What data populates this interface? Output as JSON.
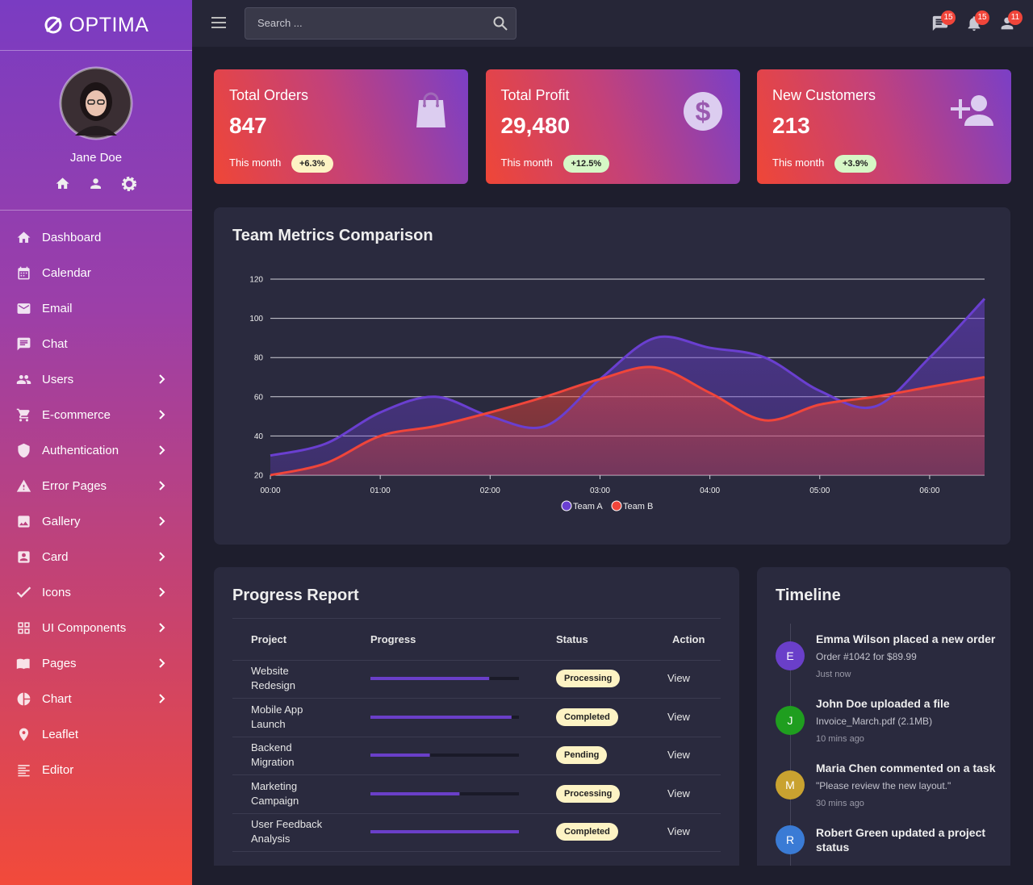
{
  "sidebar": {
    "brand": "OPTIMA",
    "user": {
      "name": "Jane Doe"
    },
    "menu": [
      {
        "label": "Dashboard"
      },
      {
        "label": "Calendar"
      },
      {
        "label": "Email"
      },
      {
        "label": "Chat"
      },
      {
        "label": "Users",
        "submenu": true
      },
      {
        "label": "E-commerce",
        "submenu": true
      },
      {
        "label": "Authentication",
        "submenu": true
      },
      {
        "label": "Error Pages",
        "submenu": true
      },
      {
        "label": "Gallery",
        "submenu": true
      },
      {
        "label": "Card",
        "submenu": true
      },
      {
        "label": "Icons",
        "submenu": true
      },
      {
        "label": "UI Components",
        "submenu": true
      },
      {
        "label": "Pages",
        "submenu": true
      },
      {
        "label": "Chart",
        "submenu": true
      },
      {
        "label": "Leaflet"
      },
      {
        "label": "Editor"
      }
    ]
  },
  "topbar": {
    "search_placeholder": "Search ...",
    "badges": {
      "messages": 15,
      "notifications": 15,
      "users": 11
    }
  },
  "stats": [
    {
      "title": "Total Orders",
      "value": "847",
      "period": "This month",
      "change": "+6.3%",
      "change_color": "#fdf3c4"
    },
    {
      "title": "Total Profit",
      "value": "29,480",
      "period": "This month",
      "change": "+12.5%",
      "change_color": "#d6f7c6"
    },
    {
      "title": "New Customers",
      "value": "213",
      "period": "This month",
      "change": "+3.9%",
      "change_color": "#d6f7c6"
    }
  ],
  "chart_data": {
    "type": "area",
    "title": "Team Metrics Comparison",
    "categories": [
      "00:00",
      null,
      "01:00",
      null,
      "02:00",
      null,
      "03:00",
      null,
      "04:00",
      null,
      "05:00",
      null,
      "06:00",
      null
    ],
    "series": [
      {
        "name": "Team A",
        "color": "#6a3fd0",
        "values": [
          30,
          36,
          52,
          60,
          50,
          45,
          69,
          90,
          85,
          80,
          63,
          55,
          80,
          110
        ]
      },
      {
        "name": "Team B",
        "color": "#f0453a",
        "values": [
          20,
          26,
          40,
          45,
          52,
          60,
          69,
          75,
          62,
          48,
          56,
          60,
          65,
          70
        ]
      }
    ],
    "ylim": [
      20,
      120
    ],
    "yticks": [
      20,
      40,
      60,
      80,
      100,
      120
    ],
    "grid": true,
    "legend": "bottom"
  },
  "progress_report": {
    "title": "Progress Report",
    "columns": [
      "Project",
      "Progress",
      "Status",
      "Action"
    ],
    "rows": [
      {
        "project": "Website Redesign",
        "progress": 80,
        "status": "Processing",
        "action": "View"
      },
      {
        "project": "Mobile App Launch",
        "progress": 95,
        "status": "Completed",
        "action": "View"
      },
      {
        "project": "Backend Migration",
        "progress": 40,
        "status": "Pending",
        "action": "View"
      },
      {
        "project": "Marketing Campaign",
        "progress": 60,
        "status": "Processing",
        "action": "View"
      },
      {
        "project": "User Feedback Analysis",
        "progress": 100,
        "status": "Completed",
        "action": "View"
      }
    ]
  },
  "timeline": {
    "title": "Timeline",
    "items": [
      {
        "initial": "E",
        "color": "#6a3fc9",
        "title": "Emma Wilson placed a new order",
        "detail": "Order #1042 for $89.99",
        "time": "Just now"
      },
      {
        "initial": "J",
        "color": "#1f9e1f",
        "title": "John Doe uploaded a file",
        "detail": "Invoice_March.pdf (2.1MB)",
        "time": "10 mins ago"
      },
      {
        "initial": "M",
        "color": "#c9a230",
        "title": "Maria Chen commented on a task",
        "detail": "\"Please review the new layout.\"",
        "time": "30 mins ago"
      },
      {
        "initial": "R",
        "color": "#3a7bd5",
        "title": "Robert Green updated a project status",
        "detail": "",
        "time": ""
      }
    ]
  }
}
